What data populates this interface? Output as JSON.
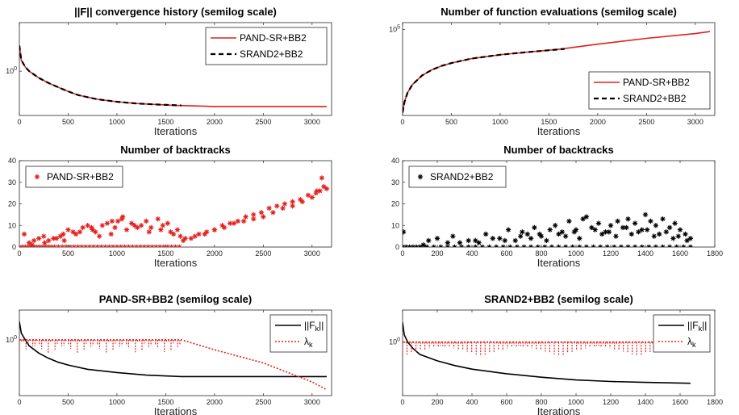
{
  "chart_data": [
    {
      "id": "p1",
      "type": "line",
      "title": "||F|| convergence history (semilog scale)",
      "xlabel": "Iterations",
      "xlim": [
        0,
        3200
      ],
      "xticks": [
        "0",
        "500",
        "1000",
        "1500",
        "2000",
        "2500",
        "3000"
      ],
      "yscale": "log",
      "yticks": [
        "10^0"
      ],
      "legend_position": "top-right",
      "legend": [
        "PAND-SR+BB2",
        "SRAND2+BB2"
      ],
      "series": [
        {
          "name": "PAND-SR+BB2",
          "style": "solid",
          "color": "#e0201c",
          "x": [
            0,
            20,
            60,
            100,
            200,
            300,
            400,
            500,
            600,
            800,
            1000,
            1200,
            1400,
            1600,
            2000,
            2500,
            3000,
            3150
          ],
          "y": [
            3.0,
            1.6,
            1.2,
            1.0,
            0.75,
            0.6,
            0.5,
            0.42,
            0.36,
            0.3,
            0.27,
            0.25,
            0.24,
            0.23,
            0.22,
            0.22,
            0.22,
            0.22
          ]
        },
        {
          "name": "SRAND2+BB2",
          "style": "dashed",
          "color": "#000000",
          "x": [
            0,
            20,
            60,
            100,
            200,
            300,
            400,
            500,
            600,
            800,
            1000,
            1200,
            1400,
            1660
          ],
          "y": [
            3.0,
            1.6,
            1.2,
            1.0,
            0.75,
            0.6,
            0.5,
            0.42,
            0.36,
            0.3,
            0.27,
            0.25,
            0.24,
            0.23
          ]
        }
      ]
    },
    {
      "id": "p2",
      "type": "line",
      "title": "Number of function evaluations (semilog scale)",
      "xlabel": "Iterations",
      "xlim": [
        0,
        3200
      ],
      "xticks": [
        "0",
        "500",
        "1000",
        "1500",
        "2000",
        "2500",
        "3000"
      ],
      "yscale": "log",
      "yticks": [
        "10^5"
      ],
      "legend_position": "bottom-right",
      "legend": [
        "PAND-SR+BB2",
        "SRAND2+BB2"
      ],
      "series": [
        {
          "name": "PAND-SR+BB2",
          "style": "solid",
          "color": "#e0201c",
          "x": [
            0,
            20,
            50,
            100,
            200,
            300,
            400,
            500,
            700,
            1000,
            1300,
            1600,
            2000,
            2500,
            3000,
            3150
          ],
          "y": [
            20,
            60,
            150,
            350,
            900,
            1600,
            2400,
            3200,
            5000,
            7500,
            10000,
            13000,
            22000,
            40000,
            65000,
            80000
          ]
        },
        {
          "name": "SRAND2+BB2",
          "style": "dashed",
          "color": "#000000",
          "x": [
            0,
            20,
            50,
            100,
            200,
            300,
            400,
            500,
            700,
            1000,
            1300,
            1660
          ],
          "y": [
            20,
            60,
            150,
            350,
            900,
            1600,
            2400,
            3200,
            5000,
            7500,
            10000,
            13500
          ]
        }
      ]
    },
    {
      "id": "p3",
      "type": "scatter",
      "title": "Number of backtracks",
      "xlabel": "Iterations",
      "xlim": [
        0,
        3200
      ],
      "ylim": [
        0,
        40
      ],
      "xticks": [
        "0",
        "500",
        "1000",
        "1500",
        "2000",
        "2500",
        "3000"
      ],
      "yticks": [
        "0",
        "10",
        "20",
        "30",
        "40"
      ],
      "legend_position": "top-left",
      "legend": [
        "PAND-SR+BB2"
      ],
      "series": [
        {
          "name": "PAND-SR+BB2",
          "marker": "*",
          "color": "#e0201c",
          "x": [
            0,
            30,
            60,
            90,
            120,
            150,
            180,
            210,
            240,
            270,
            300,
            330,
            360,
            400,
            440,
            480,
            520,
            560,
            600,
            640,
            680,
            720,
            760,
            800,
            840,
            880,
            920,
            960,
            1000,
            1040,
            1080,
            1120,
            1160,
            1200,
            1240,
            1280,
            1320,
            1360,
            1400,
            1440,
            1480,
            1520,
            1560,
            1600,
            1640,
            1680,
            1760,
            1840,
            1920,
            2000,
            2080,
            2160,
            2240,
            2320,
            2400,
            2480,
            2560,
            2640,
            2720,
            2800,
            2880,
            2960,
            3040,
            3080,
            3120,
            3150,
            50,
            150,
            250,
            350,
            450,
            550,
            650,
            750,
            850,
            950,
            1050,
            1150,
            1250,
            1350,
            1450,
            1550,
            1650,
            100,
            200,
            300,
            420,
            500,
            580,
            700,
            780,
            900,
            980,
            1060,
            1180,
            1300,
            1420,
            1520,
            1620,
            130,
            260,
            380,
            460,
            620,
            740,
            820,
            940,
            1010,
            1100,
            1210,
            1330,
            1470,
            1580,
            1700,
            1800,
            1900,
            2000,
            2100,
            2200,
            2300,
            2400,
            2500,
            2600,
            2700,
            2800,
            2900,
            3000,
            3050,
            3100
          ],
          "y": [
            0,
            0,
            0,
            0,
            0,
            0,
            0,
            0,
            0,
            0,
            0,
            0,
            0,
            0,
            0,
            0,
            0,
            0,
            0,
            0,
            0,
            0,
            0,
            0,
            0,
            0,
            0,
            0,
            0,
            0,
            0,
            0,
            0,
            0,
            0,
            0,
            0,
            0,
            0,
            0,
            0,
            0,
            0,
            0,
            0,
            3,
            4,
            6,
            7,
            8,
            10,
            11,
            12,
            14,
            15,
            16,
            18,
            19,
            20,
            21,
            22,
            24,
            25,
            26,
            28,
            27,
            6,
            3,
            5,
            4,
            6,
            7,
            9,
            8,
            10,
            12,
            13,
            11,
            10,
            9,
            8,
            7,
            5,
            2,
            4,
            3,
            5,
            8,
            6,
            10,
            7,
            11,
            9,
            14,
            10,
            12,
            13,
            11,
            8,
            1,
            2,
            4,
            3,
            7,
            9,
            5,
            6,
            12,
            8,
            9,
            7,
            10,
            6,
            4,
            5,
            6,
            8,
            9,
            11,
            12,
            13,
            14,
            16,
            18,
            19,
            21,
            23,
            26,
            32
          ]
        }
      ]
    },
    {
      "id": "p4",
      "type": "scatter",
      "title": "Number of backtracks",
      "xlabel": "Iterations",
      "xlim": [
        0,
        1800
      ],
      "ylim": [
        0,
        40
      ],
      "xticks": [
        "0",
        "200",
        "400",
        "600",
        "800",
        "1000",
        "1200",
        "1400",
        "1600",
        "1800"
      ],
      "yticks": [
        "0",
        "10",
        "20",
        "30",
        "40"
      ],
      "legend_position": "top-left",
      "legend": [
        "SRAND2+BB2"
      ],
      "series": [
        {
          "name": "SRAND2+BB2",
          "marker": "*",
          "color": "#000000",
          "x": [
            0,
            20,
            40,
            60,
            80,
            100,
            140,
            180,
            220,
            260,
            300,
            340,
            380,
            420,
            460,
            500,
            540,
            580,
            620,
            660,
            700,
            740,
            780,
            820,
            860,
            900,
            940,
            980,
            1020,
            1060,
            1100,
            1140,
            1180,
            1220,
            1260,
            1300,
            1340,
            1380,
            1420,
            1460,
            1500,
            1540,
            1580,
            1620,
            1660,
            5,
            120,
            200,
            290,
            330,
            420,
            480,
            560,
            610,
            650,
            690,
            720,
            760,
            800,
            850,
            880,
            920,
            960,
            1000,
            1040,
            1060,
            1090,
            1130,
            1170,
            1200,
            1240,
            1270,
            1300,
            1340,
            1380,
            1400,
            1430,
            1460,
            1500,
            1540,
            1570,
            1600,
            1630,
            1660,
            150,
            260,
            380,
            440,
            520,
            590,
            680,
            740,
            790,
            830,
            900,
            940,
            990,
            1020,
            1110,
            1150,
            1190,
            1230,
            1290,
            1320,
            1360,
            1410,
            1450,
            1480,
            1520,
            1560,
            1590,
            1640
          ],
          "y": [
            0,
            0,
            0,
            0,
            0,
            0,
            0,
            0,
            0,
            0,
            0,
            0,
            0,
            0,
            0,
            0,
            0,
            0,
            0,
            0,
            0,
            0,
            0,
            0,
            0,
            0,
            0,
            0,
            0,
            0,
            0,
            0,
            0,
            0,
            0,
            0,
            0,
            0,
            0,
            0,
            0,
            0,
            0,
            0,
            0,
            7,
            1,
            4,
            5,
            2,
            3,
            6,
            4,
            8,
            3,
            7,
            6,
            9,
            5,
            8,
            10,
            7,
            12,
            8,
            13,
            14,
            9,
            11,
            7,
            10,
            12,
            9,
            13,
            11,
            8,
            15,
            12,
            10,
            13,
            9,
            11,
            8,
            6,
            4,
            3,
            2,
            3,
            2,
            4,
            3,
            5,
            4,
            6,
            3,
            6,
            5,
            7,
            4,
            8,
            6,
            7,
            5,
            9,
            6,
            7,
            8,
            5,
            6,
            7,
            4,
            5,
            3
          ]
        }
      ]
    },
    {
      "id": "p5",
      "type": "line",
      "title": "PAND-SR+BB2 (semilog scale)",
      "xlabel": "Iterations",
      "xlim": [
        0,
        3200
      ],
      "xticks": [
        "0",
        "500",
        "1000",
        "1500",
        "2000",
        "2500",
        "3000"
      ],
      "yscale": "log",
      "yticks": [
        "10^0"
      ],
      "legend_position": "top-right",
      "legend": [
        "||F_k||",
        "λ_k"
      ],
      "series": [
        {
          "name": "||F_k||",
          "style": "solid",
          "color": "#000000",
          "x": [
            0,
            20,
            60,
            100,
            200,
            300,
            400,
            500,
            700,
            1000,
            1300,
            1660,
            2000,
            2500,
            3000,
            3150
          ],
          "y": [
            3.0,
            1.5,
            1.0,
            0.7,
            0.45,
            0.33,
            0.26,
            0.22,
            0.17,
            0.14,
            0.12,
            0.11,
            0.11,
            0.11,
            0.11,
            0.11
          ]
        },
        {
          "name": "λ_k",
          "style": "dotted",
          "color": "#e0201c",
          "x": [
            0,
            1660,
            2000,
            2500,
            3000,
            3150
          ],
          "y": [
            1.0,
            1.0,
            0.55,
            0.25,
            0.08,
            0.05
          ]
        }
      ]
    },
    {
      "id": "p6",
      "type": "line",
      "title": "SRAND2+BB2 (semilog scale)",
      "xlabel": "Iterations",
      "xlim": [
        0,
        1800
      ],
      "xticks": [
        "0",
        "200",
        "400",
        "600",
        "800",
        "1000",
        "1200",
        "1400",
        "1600",
        "1800"
      ],
      "yscale": "log",
      "yticks": [
        "10^0"
      ],
      "legend_position": "top-right",
      "legend": [
        "||F_k||",
        "λ_k"
      ],
      "series": [
        {
          "name": "||F_k||",
          "style": "solid",
          "color": "#000000",
          "x": [
            0,
            10,
            30,
            60,
            100,
            200,
            300,
            400,
            600,
            800,
            1000,
            1200,
            1400,
            1660
          ],
          "y": [
            3.0,
            1.5,
            1.0,
            0.7,
            0.5,
            0.35,
            0.27,
            0.22,
            0.17,
            0.14,
            0.12,
            0.11,
            0.105,
            0.1
          ]
        },
        {
          "name": "λ_k",
          "style": "dotted",
          "color": "#e0201c",
          "x": [
            0,
            1660
          ],
          "y": [
            1.0,
            1.0
          ]
        }
      ]
    }
  ]
}
